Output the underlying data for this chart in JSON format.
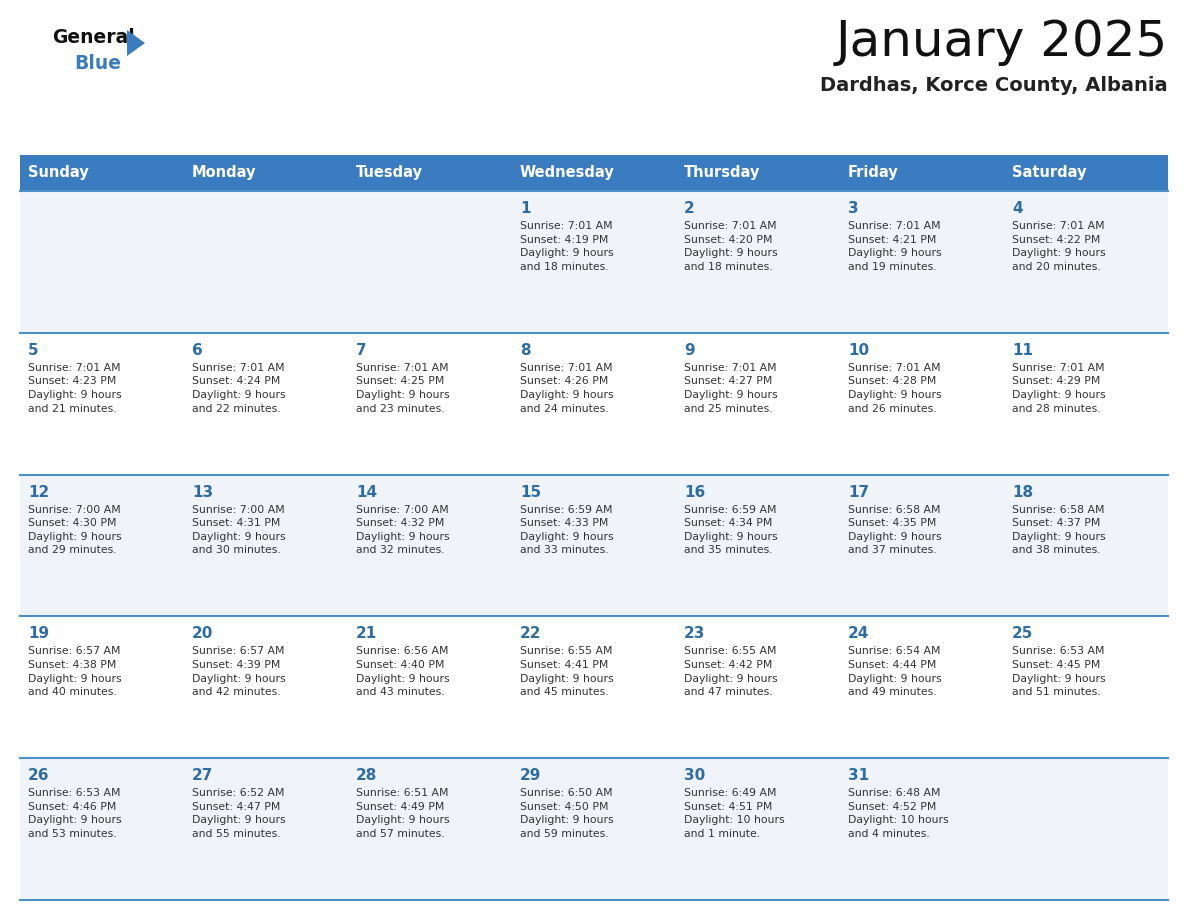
{
  "title": "January 2025",
  "subtitle": "Dardhas, Korce County, Albania",
  "days_of_week": [
    "Sunday",
    "Monday",
    "Tuesday",
    "Wednesday",
    "Thursday",
    "Friday",
    "Saturday"
  ],
  "header_bg": "#3b7bbf",
  "header_text": "#ffffff",
  "odd_row_bg": "#f0f4f8",
  "even_row_bg": "#ffffff",
  "line_color": "#4a90c4",
  "day_number_color": "#2e6da4",
  "cell_text_color": "#333333",
  "calendar_data": [
    [
      {
        "day": null,
        "info": null
      },
      {
        "day": null,
        "info": null
      },
      {
        "day": null,
        "info": null
      },
      {
        "day": "1",
        "info": "Sunrise: 7:01 AM\nSunset: 4:19 PM\nDaylight: 9 hours\nand 18 minutes."
      },
      {
        "day": "2",
        "info": "Sunrise: 7:01 AM\nSunset: 4:20 PM\nDaylight: 9 hours\nand 18 minutes."
      },
      {
        "day": "3",
        "info": "Sunrise: 7:01 AM\nSunset: 4:21 PM\nDaylight: 9 hours\nand 19 minutes."
      },
      {
        "day": "4",
        "info": "Sunrise: 7:01 AM\nSunset: 4:22 PM\nDaylight: 9 hours\nand 20 minutes."
      }
    ],
    [
      {
        "day": "5",
        "info": "Sunrise: 7:01 AM\nSunset: 4:23 PM\nDaylight: 9 hours\nand 21 minutes."
      },
      {
        "day": "6",
        "info": "Sunrise: 7:01 AM\nSunset: 4:24 PM\nDaylight: 9 hours\nand 22 minutes."
      },
      {
        "day": "7",
        "info": "Sunrise: 7:01 AM\nSunset: 4:25 PM\nDaylight: 9 hours\nand 23 minutes."
      },
      {
        "day": "8",
        "info": "Sunrise: 7:01 AM\nSunset: 4:26 PM\nDaylight: 9 hours\nand 24 minutes."
      },
      {
        "day": "9",
        "info": "Sunrise: 7:01 AM\nSunset: 4:27 PM\nDaylight: 9 hours\nand 25 minutes."
      },
      {
        "day": "10",
        "info": "Sunrise: 7:01 AM\nSunset: 4:28 PM\nDaylight: 9 hours\nand 26 minutes."
      },
      {
        "day": "11",
        "info": "Sunrise: 7:01 AM\nSunset: 4:29 PM\nDaylight: 9 hours\nand 28 minutes."
      }
    ],
    [
      {
        "day": "12",
        "info": "Sunrise: 7:00 AM\nSunset: 4:30 PM\nDaylight: 9 hours\nand 29 minutes."
      },
      {
        "day": "13",
        "info": "Sunrise: 7:00 AM\nSunset: 4:31 PM\nDaylight: 9 hours\nand 30 minutes."
      },
      {
        "day": "14",
        "info": "Sunrise: 7:00 AM\nSunset: 4:32 PM\nDaylight: 9 hours\nand 32 minutes."
      },
      {
        "day": "15",
        "info": "Sunrise: 6:59 AM\nSunset: 4:33 PM\nDaylight: 9 hours\nand 33 minutes."
      },
      {
        "day": "16",
        "info": "Sunrise: 6:59 AM\nSunset: 4:34 PM\nDaylight: 9 hours\nand 35 minutes."
      },
      {
        "day": "17",
        "info": "Sunrise: 6:58 AM\nSunset: 4:35 PM\nDaylight: 9 hours\nand 37 minutes."
      },
      {
        "day": "18",
        "info": "Sunrise: 6:58 AM\nSunset: 4:37 PM\nDaylight: 9 hours\nand 38 minutes."
      }
    ],
    [
      {
        "day": "19",
        "info": "Sunrise: 6:57 AM\nSunset: 4:38 PM\nDaylight: 9 hours\nand 40 minutes."
      },
      {
        "day": "20",
        "info": "Sunrise: 6:57 AM\nSunset: 4:39 PM\nDaylight: 9 hours\nand 42 minutes."
      },
      {
        "day": "21",
        "info": "Sunrise: 6:56 AM\nSunset: 4:40 PM\nDaylight: 9 hours\nand 43 minutes."
      },
      {
        "day": "22",
        "info": "Sunrise: 6:55 AM\nSunset: 4:41 PM\nDaylight: 9 hours\nand 45 minutes."
      },
      {
        "day": "23",
        "info": "Sunrise: 6:55 AM\nSunset: 4:42 PM\nDaylight: 9 hours\nand 47 minutes."
      },
      {
        "day": "24",
        "info": "Sunrise: 6:54 AM\nSunset: 4:44 PM\nDaylight: 9 hours\nand 49 minutes."
      },
      {
        "day": "25",
        "info": "Sunrise: 6:53 AM\nSunset: 4:45 PM\nDaylight: 9 hours\nand 51 minutes."
      }
    ],
    [
      {
        "day": "26",
        "info": "Sunrise: 6:53 AM\nSunset: 4:46 PM\nDaylight: 9 hours\nand 53 minutes."
      },
      {
        "day": "27",
        "info": "Sunrise: 6:52 AM\nSunset: 4:47 PM\nDaylight: 9 hours\nand 55 minutes."
      },
      {
        "day": "28",
        "info": "Sunrise: 6:51 AM\nSunset: 4:49 PM\nDaylight: 9 hours\nand 57 minutes."
      },
      {
        "day": "29",
        "info": "Sunrise: 6:50 AM\nSunset: 4:50 PM\nDaylight: 9 hours\nand 59 minutes."
      },
      {
        "day": "30",
        "info": "Sunrise: 6:49 AM\nSunset: 4:51 PM\nDaylight: 10 hours\nand 1 minute."
      },
      {
        "day": "31",
        "info": "Sunrise: 6:48 AM\nSunset: 4:52 PM\nDaylight: 10 hours\nand 4 minutes."
      },
      {
        "day": null,
        "info": null
      }
    ]
  ],
  "fig_width": 11.88,
  "fig_height": 9.18,
  "dpi": 100
}
